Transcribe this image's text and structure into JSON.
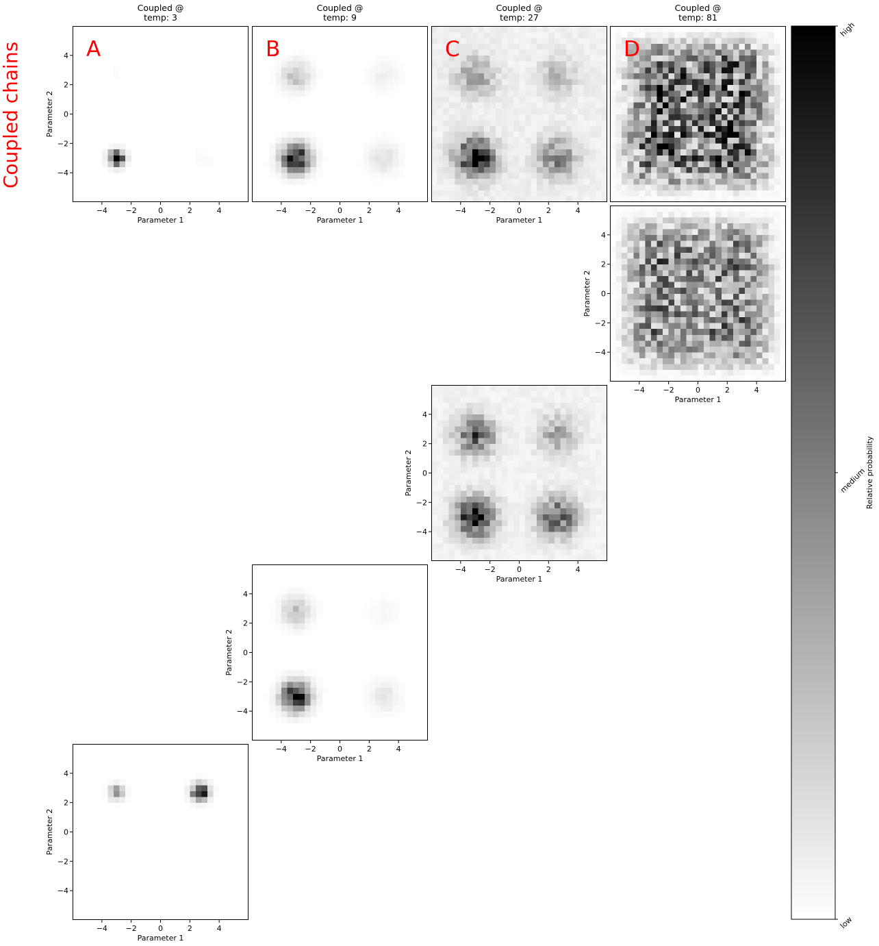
{
  "figure": {
    "side_title": "Coupled chains",
    "cmap": "Greys",
    "colorbar": {
      "label": "Relative probability",
      "ticks": [
        "low",
        "medium",
        "high"
      ]
    }
  },
  "chart_data": [
    {
      "type": "heatmap",
      "id": "r0c0",
      "title": [
        "Coupled @",
        "temp: 3"
      ],
      "panel_letter": "A",
      "xlabel": "Parameter 1",
      "ylabel": "Parameter 2",
      "xlim": [
        -6,
        6
      ],
      "ylim": [
        -6,
        6
      ],
      "xticks": [
        -4,
        -2,
        0,
        2,
        4
      ],
      "yticks": [
        -4,
        -2,
        0,
        2,
        4
      ],
      "show_xaxis": true,
      "show_yaxis": true,
      "temperature": 3,
      "modes": [
        {
          "x": -3,
          "y": -3,
          "peak": 1.0,
          "sigma": 0.35
        },
        {
          "x": 3,
          "y": -3,
          "peak": 0.02,
          "sigma": 0.45
        },
        {
          "x": -3,
          "y": 3,
          "peak": 0.01,
          "sigma": 0.45
        }
      ],
      "noise": 0.35,
      "seed": 11
    },
    {
      "type": "heatmap",
      "id": "r0c1",
      "title": [
        "Coupled @",
        "temp: 9"
      ],
      "panel_letter": "B",
      "xlabel": "Parameter 1",
      "ylabel": "",
      "xlim": [
        -6,
        6
      ],
      "ylim": [
        -6,
        6
      ],
      "xticks": [
        -4,
        -2,
        0,
        2,
        4
      ],
      "yticks": [],
      "show_xaxis": true,
      "show_yaxis": false,
      "temperature": 9,
      "modes": [
        {
          "x": -3,
          "y": -3,
          "peak": 0.95,
          "sigma": 0.65
        },
        {
          "x": -3,
          "y": 2.6,
          "peak": 0.25,
          "sigma": 0.65
        },
        {
          "x": 3,
          "y": -3,
          "peak": 0.12,
          "sigma": 0.7
        },
        {
          "x": 3,
          "y": 2.6,
          "peak": 0.06,
          "sigma": 0.7
        }
      ],
      "noise": 0.3,
      "seed": 23
    },
    {
      "type": "heatmap",
      "id": "r0c2",
      "title": [
        "Coupled @",
        "temp: 27"
      ],
      "panel_letter": "C",
      "xlabel": "Parameter 1",
      "ylabel": "",
      "xlim": [
        -6,
        6
      ],
      "ylim": [
        -6,
        6
      ],
      "xticks": [
        -4,
        -2,
        0,
        2,
        4
      ],
      "yticks": [],
      "show_xaxis": true,
      "show_yaxis": false,
      "temperature": 27,
      "modes": [
        {
          "x": -3,
          "y": -3,
          "peak": 0.85,
          "sigma": 0.9
        },
        {
          "x": -3,
          "y": 2.6,
          "peak": 0.35,
          "sigma": 0.9
        },
        {
          "x": 2.6,
          "y": -3,
          "peak": 0.45,
          "sigma": 0.9
        },
        {
          "x": 2.6,
          "y": 2.6,
          "peak": 0.2,
          "sigma": 0.9
        }
      ],
      "background": 0.06,
      "noise": 0.45,
      "seed": 37
    },
    {
      "type": "heatmap",
      "id": "r0c3",
      "title": [
        "Coupled @",
        "temp: 81"
      ],
      "panel_letter": "D",
      "xlabel": "",
      "ylabel": "",
      "xlim": [
        -6,
        6
      ],
      "ylim": [
        -6,
        6
      ],
      "xticks": [],
      "yticks": [],
      "show_xaxis": false,
      "show_yaxis": false,
      "temperature": 81,
      "modes": [
        {
          "x": -2.5,
          "y": -2.5,
          "peak": 0.55,
          "sigma": 2.0
        },
        {
          "x": -2.5,
          "y": 2.5,
          "peak": 0.55,
          "sigma": 2.0
        },
        {
          "x": 2.5,
          "y": -2.5,
          "peak": 0.55,
          "sigma": 2.0
        },
        {
          "x": 2.5,
          "y": 2.5,
          "peak": 0.55,
          "sigma": 2.0
        }
      ],
      "edge": 5.2,
      "noise": 0.85,
      "seed": 41
    },
    {
      "type": "heatmap",
      "id": "r1c3",
      "title": [],
      "panel_letter": "",
      "xlabel": "Parameter 1",
      "ylabel": "Parameter 2",
      "xlim": [
        -6,
        6
      ],
      "ylim": [
        -6,
        6
      ],
      "xticks": [
        -4,
        -2,
        0,
        2,
        4
      ],
      "yticks": [
        -4,
        -2,
        0,
        2,
        4
      ],
      "show_xaxis": true,
      "show_yaxis": true,
      "temperature": 81,
      "modes": [
        {
          "x": -2.5,
          "y": -2.5,
          "peak": 0.45,
          "sigma": 2.0
        },
        {
          "x": -2.5,
          "y": 2.5,
          "peak": 0.45,
          "sigma": 2.0
        },
        {
          "x": 2.5,
          "y": -2.5,
          "peak": 0.45,
          "sigma": 2.0
        },
        {
          "x": 2.5,
          "y": 2.5,
          "peak": 0.45,
          "sigma": 2.0
        }
      ],
      "edge": 5.2,
      "noise": 0.8,
      "seed": 53
    },
    {
      "type": "heatmap",
      "id": "r2c2",
      "title": [],
      "panel_letter": "",
      "xlabel": "Parameter 1",
      "ylabel": "Parameter 2",
      "xlim": [
        -6,
        6
      ],
      "ylim": [
        -6,
        6
      ],
      "xticks": [
        -4,
        -2,
        0,
        2,
        4
      ],
      "yticks": [
        -4,
        -2,
        0,
        2,
        4
      ],
      "show_xaxis": true,
      "show_yaxis": true,
      "temperature": 27,
      "modes": [
        {
          "x": -3,
          "y": -3,
          "peak": 0.85,
          "sigma": 0.9
        },
        {
          "x": -3,
          "y": 2.6,
          "peak": 0.6,
          "sigma": 0.9
        },
        {
          "x": 2.6,
          "y": -3,
          "peak": 0.6,
          "sigma": 0.9
        },
        {
          "x": 2.6,
          "y": 2.6,
          "peak": 0.3,
          "sigma": 0.9
        }
      ],
      "background": 0.05,
      "noise": 0.45,
      "seed": 67
    },
    {
      "type": "heatmap",
      "id": "r3c1",
      "title": [],
      "panel_letter": "",
      "xlabel": "Parameter 1",
      "ylabel": "Parameter 2",
      "xlim": [
        -6,
        6
      ],
      "ylim": [
        -6,
        6
      ],
      "xticks": [
        -4,
        -2,
        0,
        2,
        4
      ],
      "yticks": [
        -4,
        -2,
        0,
        2,
        4
      ],
      "show_xaxis": true,
      "show_yaxis": true,
      "temperature": 9,
      "modes": [
        {
          "x": -3,
          "y": -3,
          "peak": 0.95,
          "sigma": 0.65
        },
        {
          "x": -3,
          "y": 2.8,
          "peak": 0.25,
          "sigma": 0.65
        },
        {
          "x": 3,
          "y": -3,
          "peak": 0.1,
          "sigma": 0.7
        },
        {
          "x": 3,
          "y": 2.8,
          "peak": 0.03,
          "sigma": 0.7
        }
      ],
      "noise": 0.3,
      "seed": 79
    },
    {
      "type": "heatmap",
      "id": "r4c0",
      "title": [],
      "panel_letter": "",
      "xlabel": "Parameter 1",
      "ylabel": "Parameter 2",
      "xlim": [
        -6,
        6
      ],
      "ylim": [
        -6,
        6
      ],
      "xticks": [
        -4,
        -2,
        0,
        2,
        4
      ],
      "yticks": [
        -4,
        -2,
        0,
        2,
        4
      ],
      "show_xaxis": true,
      "show_yaxis": true,
      "temperature": 3,
      "modes": [
        {
          "x": 2.7,
          "y": 2.7,
          "peak": 1.0,
          "sigma": 0.38
        },
        {
          "x": -3,
          "y": 2.7,
          "peak": 0.45,
          "sigma": 0.33
        }
      ],
      "noise": 0.35,
      "seed": 97
    }
  ]
}
